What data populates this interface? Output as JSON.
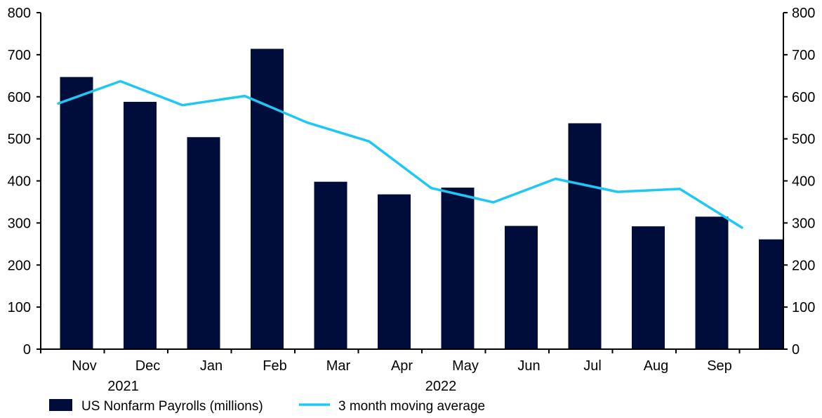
{
  "chart_data": {
    "type": "bar",
    "categories": [
      "Nov",
      "Dec",
      "Jan",
      "Feb",
      "Mar",
      "Apr",
      "May",
      "Jun",
      "Jul",
      "Aug",
      "Sep",
      ""
    ],
    "year_labels": [
      {
        "label": "2021",
        "category_index": 1
      },
      {
        "label": "2022",
        "category_index": 6
      }
    ],
    "series": [
      {
        "name": "US Nonfarm Payrolls (millions)",
        "type": "bar",
        "color": "#000c3a",
        "values": [
          647,
          588,
          504,
          714,
          398,
          368,
          384,
          293,
          537,
          292,
          315,
          261
        ]
      },
      {
        "name": "3 month moving average",
        "type": "line",
        "color": "#1ec8f5",
        "values": [
          584,
          637,
          580,
          602,
          539,
          494,
          383,
          349,
          405,
          374,
          381,
          289
        ]
      }
    ],
    "ylim": [
      0,
      800
    ],
    "y_ticks": [
      0,
      100,
      200,
      300,
      400,
      500,
      600,
      700,
      800
    ],
    "y_ticks_right": [
      0,
      100,
      200,
      300,
      400,
      500,
      600,
      700,
      800
    ],
    "legend_position": "bottom-left",
    "grid": false
  }
}
